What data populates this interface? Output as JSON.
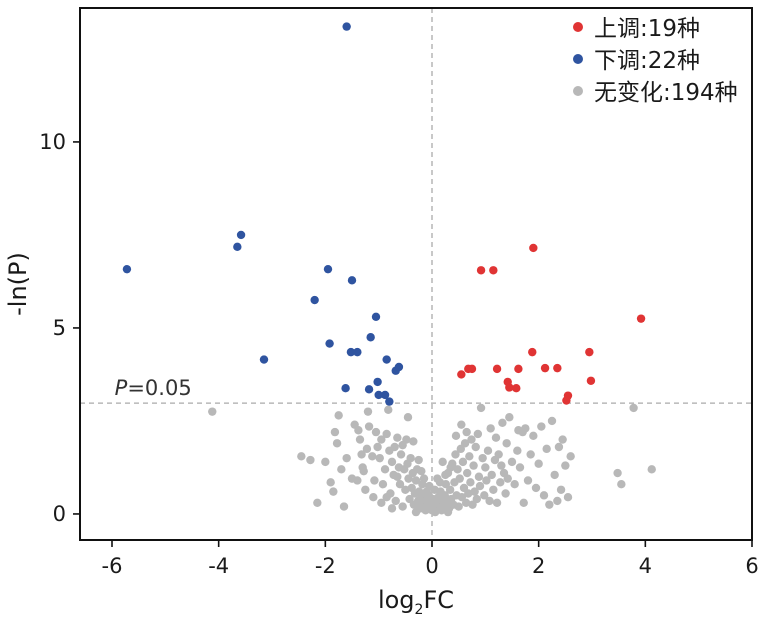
{
  "chart_data": {
    "type": "scatter",
    "title": "",
    "xlabel": {
      "prefix": "log",
      "subscript": "2",
      "suffix": "FC"
    },
    "ylabel": "-ln(P)",
    "xlim": [
      -6.6,
      6.0
    ],
    "ylim": [
      -0.7,
      13.6
    ],
    "xticks": [
      -6,
      -4,
      -2,
      0,
      2,
      4,
      6
    ],
    "yticks": [
      0,
      5,
      10
    ],
    "threshold": {
      "y": 2.98,
      "label_italic": "P",
      "label_rest": "=0.05"
    },
    "legend_position": "top-right",
    "colors": {
      "up": "#e03434",
      "down": "#2f54a0",
      "none": "#b8b8b8"
    },
    "series": [
      {
        "name": "上调:19种",
        "key": "up",
        "points": [
          [
            0.55,
            3.75
          ],
          [
            0.68,
            3.9
          ],
          [
            0.75,
            3.9
          ],
          [
            0.92,
            6.55
          ],
          [
            1.15,
            6.55
          ],
          [
            1.22,
            3.9
          ],
          [
            1.42,
            3.55
          ],
          [
            1.45,
            3.4
          ],
          [
            1.58,
            3.38
          ],
          [
            1.62,
            3.9
          ],
          [
            1.88,
            4.35
          ],
          [
            1.9,
            7.15
          ],
          [
            2.12,
            3.92
          ],
          [
            2.35,
            3.92
          ],
          [
            2.52,
            3.05
          ],
          [
            2.55,
            3.18
          ],
          [
            2.95,
            4.35
          ],
          [
            2.98,
            3.58
          ],
          [
            3.92,
            5.25
          ]
        ]
      },
      {
        "name": "下调:22种",
        "key": "down",
        "points": [
          [
            -5.72,
            6.58
          ],
          [
            -3.58,
            7.5
          ],
          [
            -3.65,
            7.18
          ],
          [
            -3.15,
            4.15
          ],
          [
            -2.2,
            5.75
          ],
          [
            -1.95,
            6.58
          ],
          [
            -1.92,
            4.58
          ],
          [
            -1.6,
            13.1
          ],
          [
            -1.52,
            4.35
          ],
          [
            -1.5,
            6.28
          ],
          [
            -1.4,
            4.35
          ],
          [
            -1.15,
            4.75
          ],
          [
            -1.18,
            3.35
          ],
          [
            -1.05,
            5.3
          ],
          [
            -1.02,
            3.55
          ],
          [
            -1.0,
            3.2
          ],
          [
            -0.88,
            3.2
          ],
          [
            -0.85,
            4.15
          ],
          [
            -0.8,
            3.02
          ],
          [
            -0.68,
            3.85
          ],
          [
            -0.62,
            3.95
          ],
          [
            -1.62,
            3.38
          ]
        ]
      },
      {
        "name": "无变化:194种",
        "key": "none",
        "points": [
          [
            -4.12,
            2.75
          ],
          [
            -2.45,
            1.55
          ],
          [
            -2.28,
            1.45
          ],
          [
            -2.0,
            1.4
          ],
          [
            -1.85,
            0.6
          ],
          [
            -1.82,
            2.2
          ],
          [
            -1.78,
            1.9
          ],
          [
            -1.7,
            1.2
          ],
          [
            -1.65,
            0.2
          ],
          [
            -1.45,
            2.4
          ],
          [
            -1.4,
            0.9
          ],
          [
            -1.38,
            2.25
          ],
          [
            -1.35,
            2.0
          ],
          [
            -1.3,
            1.25
          ],
          [
            -1.28,
            1.15
          ],
          [
            -1.25,
            0.65
          ],
          [
            -1.2,
            2.75
          ],
          [
            -1.18,
            2.35
          ],
          [
            -1.12,
            1.55
          ],
          [
            -1.08,
            0.9
          ],
          [
            -1.05,
            2.2
          ],
          [
            -1.02,
            1.8
          ],
          [
            -0.98,
            1.5
          ],
          [
            -0.95,
            2.0
          ],
          [
            -0.92,
            0.8
          ],
          [
            -0.88,
            1.2
          ],
          [
            -0.85,
            2.15
          ],
          [
            -0.82,
            2.8
          ],
          [
            -0.8,
            1.7
          ],
          [
            -0.78,
            0.55
          ],
          [
            -0.75,
            1.4
          ],
          [
            -0.72,
            1.05
          ],
          [
            -0.7,
            1.8
          ],
          [
            -0.68,
            0.35
          ],
          [
            -0.65,
            2.05
          ],
          [
            -0.62,
            1.25
          ],
          [
            -0.6,
            0.8
          ],
          [
            -0.58,
            1.6
          ],
          [
            -0.55,
            0.2
          ],
          [
            -0.52,
            1.2
          ],
          [
            -0.5,
            0.65
          ],
          [
            -0.48,
            2.0
          ],
          [
            -0.46,
            1.35
          ],
          [
            -0.44,
            0.95
          ],
          [
            -0.42,
            0.4
          ],
          [
            -0.4,
            1.5
          ],
          [
            -0.38,
            0.7
          ],
          [
            -0.36,
            1.1
          ],
          [
            -0.34,
            0.25
          ],
          [
            -0.32,
            0.55
          ],
          [
            -0.3,
            0.9
          ],
          [
            -0.28,
            1.2
          ],
          [
            -0.26,
            0.35
          ],
          [
            -0.24,
            0.6
          ],
          [
            -0.22,
            0.15
          ],
          [
            -0.2,
            0.45
          ],
          [
            -0.18,
            0.8
          ],
          [
            -0.16,
            0.3
          ],
          [
            -0.14,
            0.55
          ],
          [
            -0.12,
            0.1
          ],
          [
            -0.1,
            0.35
          ],
          [
            -0.08,
            0.2
          ],
          [
            -0.06,
            0.5
          ],
          [
            -0.04,
            0.15
          ],
          [
            -0.02,
            0.3
          ],
          [
            0.0,
            0.1
          ],
          [
            0.02,
            0.4
          ],
          [
            0.04,
            0.2
          ],
          [
            0.06,
            0.05
          ],
          [
            0.08,
            0.3
          ],
          [
            0.1,
            0.15
          ],
          [
            0.12,
            0.45
          ],
          [
            0.14,
            0.25
          ],
          [
            0.16,
            0.6
          ],
          [
            0.18,
            0.1
          ],
          [
            0.2,
            0.35
          ],
          [
            0.22,
            0.2
          ],
          [
            0.24,
            0.5
          ],
          [
            0.26,
            0.8
          ],
          [
            0.28,
            0.3
          ],
          [
            0.3,
            1.1
          ],
          [
            0.32,
            0.15
          ],
          [
            0.34,
            0.65
          ],
          [
            0.36,
            0.4
          ],
          [
            0.38,
            1.35
          ],
          [
            0.4,
            0.25
          ],
          [
            0.42,
            0.85
          ],
          [
            0.44,
            1.6
          ],
          [
            0.46,
            0.5
          ],
          [
            0.48,
            1.2
          ],
          [
            0.5,
            0.2
          ],
          [
            0.52,
            0.95
          ],
          [
            0.54,
            1.75
          ],
          [
            0.56,
            0.45
          ],
          [
            0.58,
            1.4
          ],
          [
            0.6,
            0.7
          ],
          [
            0.62,
            1.9
          ],
          [
            0.64,
            0.3
          ],
          [
            0.66,
            1.1
          ],
          [
            0.68,
            0.55
          ],
          [
            0.7,
            1.55
          ],
          [
            0.72,
            0.85
          ],
          [
            0.74,
            2.0
          ],
          [
            0.76,
            0.25
          ],
          [
            0.78,
            1.3
          ],
          [
            0.8,
            0.6
          ],
          [
            0.82,
            1.8
          ],
          [
            0.84,
            0.4
          ],
          [
            0.86,
            2.15
          ],
          [
            0.88,
            1.0
          ],
          [
            0.9,
            0.75
          ],
          [
            0.92,
            2.85
          ],
          [
            0.95,
            1.5
          ],
          [
            0.98,
            0.5
          ],
          [
            1.0,
            1.25
          ],
          [
            1.02,
            0.9
          ],
          [
            1.05,
            1.7
          ],
          [
            1.08,
            0.35
          ],
          [
            1.1,
            2.3
          ],
          [
            1.12,
            1.05
          ],
          [
            1.15,
            0.65
          ],
          [
            1.18,
            1.45
          ],
          [
            1.2,
            2.05
          ],
          [
            1.22,
            0.3
          ],
          [
            1.25,
            1.6
          ],
          [
            1.28,
            0.85
          ],
          [
            1.3,
            1.3
          ],
          [
            1.32,
            2.45
          ],
          [
            1.35,
            1.1
          ],
          [
            1.38,
            0.55
          ],
          [
            1.4,
            1.9
          ],
          [
            1.42,
            0.95
          ],
          [
            1.45,
            2.6
          ],
          [
            1.5,
            1.4
          ],
          [
            1.55,
            0.8
          ],
          [
            1.6,
            1.7
          ],
          [
            1.62,
            2.25
          ],
          [
            1.65,
            1.25
          ],
          [
            1.7,
            2.2
          ],
          [
            1.72,
            0.3
          ],
          [
            1.75,
            2.3
          ],
          [
            1.8,
            0.9
          ],
          [
            1.85,
            1.6
          ],
          [
            1.9,
            2.1
          ],
          [
            1.95,
            0.7
          ],
          [
            2.0,
            1.35
          ],
          [
            2.05,
            2.35
          ],
          [
            2.1,
            0.5
          ],
          [
            2.15,
            1.75
          ],
          [
            2.2,
            0.25
          ],
          [
            2.25,
            2.5
          ],
          [
            2.3,
            1.05
          ],
          [
            2.35,
            0.35
          ],
          [
            2.38,
            1.8
          ],
          [
            2.42,
            0.65
          ],
          [
            2.45,
            2.0
          ],
          [
            2.5,
            1.3
          ],
          [
            2.55,
            0.45
          ],
          [
            2.6,
            1.55
          ],
          [
            3.48,
            1.1
          ],
          [
            3.55,
            0.8
          ],
          [
            3.78,
            2.85
          ],
          [
            4.12,
            1.2
          ],
          [
            -0.45,
            2.6
          ],
          [
            -0.35,
            1.95
          ],
          [
            -0.25,
            1.45
          ],
          [
            -0.15,
            0.95
          ],
          [
            -0.05,
            0.75
          ],
          [
            0.05,
            0.65
          ],
          [
            0.15,
            0.85
          ],
          [
            0.25,
            1.05
          ],
          [
            0.35,
            1.25
          ],
          [
            0.45,
            2.1
          ],
          [
            0.55,
            2.4
          ],
          [
            0.65,
            2.2
          ],
          [
            -0.55,
            1.85
          ],
          [
            -0.65,
            1.0
          ],
          [
            -0.75,
            0.15
          ],
          [
            -0.85,
            0.45
          ],
          [
            -0.95,
            0.3
          ],
          [
            -1.1,
            0.45
          ],
          [
            -1.22,
            1.75
          ],
          [
            -1.32,
            1.6
          ],
          [
            -1.5,
            0.95
          ],
          [
            -1.6,
            1.5
          ],
          [
            -1.75,
            2.65
          ],
          [
            -1.9,
            0.85
          ],
          [
            -2.15,
            0.3
          ],
          [
            -0.2,
            1.15
          ],
          [
            0.2,
            1.4
          ],
          [
            0.1,
            0.95
          ],
          [
            -0.1,
            0.6
          ],
          [
            0.3,
            0.05
          ],
          [
            -0.3,
            0.05
          ]
        ]
      }
    ]
  }
}
